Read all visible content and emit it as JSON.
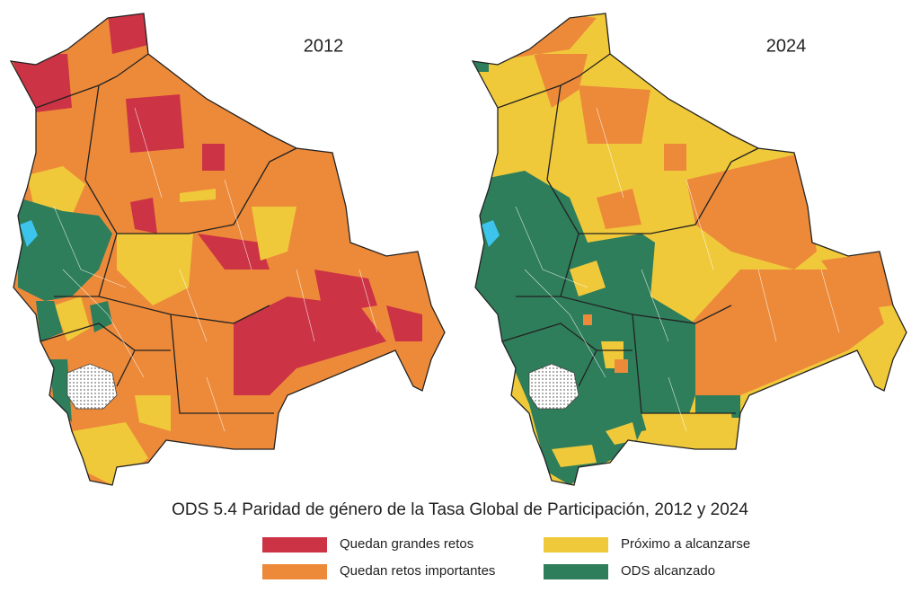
{
  "maps": [
    {
      "year": "2012"
    },
    {
      "year": "2024"
    }
  ],
  "title": "ODS 5.4 Paridad de género de la Tasa Global de Participación, 2012 y 2024",
  "legend": [
    {
      "label": "Quedan grandes retos",
      "color": "#cc3344"
    },
    {
      "label": "Quedan retos importantes",
      "color": "#ec8a3a"
    },
    {
      "label": "Próximo a alcanzarse",
      "color": "#f0c93a"
    },
    {
      "label": "ODS alcanzado",
      "color": "#2e7d5b"
    }
  ]
}
